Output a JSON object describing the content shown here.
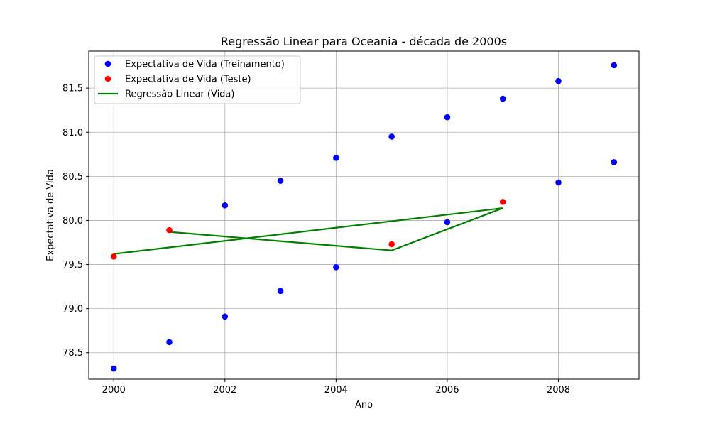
{
  "chart_data": {
    "type": "scatter",
    "title": "Regressão Linear para Oceania - década de 2000s",
    "xlabel": "Ano",
    "ylabel": "Expectativa de Vida",
    "xlim": [
      1999.55,
      2009.45
    ],
    "ylim": [
      78.2,
      81.92
    ],
    "x_ticks": [
      2000,
      2002,
      2004,
      2006,
      2008
    ],
    "y_ticks": [
      78.5,
      79.0,
      79.5,
      80.0,
      80.5,
      81.0,
      81.5
    ],
    "x_tick_labels": [
      "2000",
      "2002",
      "2004",
      "2006",
      "2008"
    ],
    "y_tick_labels": [
      "78.5",
      "79.0",
      "79.5",
      "80.0",
      "80.5",
      "81.0",
      "81.5"
    ],
    "grid": true,
    "legend_position": "top-left",
    "series": [
      {
        "name": "Expectativa de Vida (Treinamento)",
        "kind": "scatter",
        "color": "#0000ff",
        "points": [
          {
            "x": 2000,
            "y": 78.32
          },
          {
            "x": 2001,
            "y": 78.62
          },
          {
            "x": 2002,
            "y": 78.91
          },
          {
            "x": 2002,
            "y": 80.17
          },
          {
            "x": 2003,
            "y": 79.2
          },
          {
            "x": 2003,
            "y": 80.45
          },
          {
            "x": 2004,
            "y": 79.47
          },
          {
            "x": 2004,
            "y": 80.71
          },
          {
            "x": 2005,
            "y": 80.95
          },
          {
            "x": 2006,
            "y": 79.98
          },
          {
            "x": 2006,
            "y": 81.17
          },
          {
            "x": 2007,
            "y": 81.38
          },
          {
            "x": 2008,
            "y": 80.43
          },
          {
            "x": 2008,
            "y": 81.58
          },
          {
            "x": 2009,
            "y": 80.66
          },
          {
            "x": 2009,
            "y": 81.76
          }
        ]
      },
      {
        "name": "Expectativa de Vida (Teste)",
        "kind": "scatter",
        "color": "#ff0000",
        "points": [
          {
            "x": 2000,
            "y": 79.59
          },
          {
            "x": 2001,
            "y": 79.89
          },
          {
            "x": 2005,
            "y": 79.73
          },
          {
            "x": 2007,
            "y": 80.21
          }
        ]
      },
      {
        "name": "Regressão Linear (Vida)",
        "kind": "line",
        "color": "#008000",
        "points": [
          {
            "x": 2000,
            "y": 79.62
          },
          {
            "x": 2007,
            "y": 80.14
          },
          {
            "x": 2005,
            "y": 79.66
          },
          {
            "x": 2001,
            "y": 79.87
          }
        ]
      }
    ]
  }
}
